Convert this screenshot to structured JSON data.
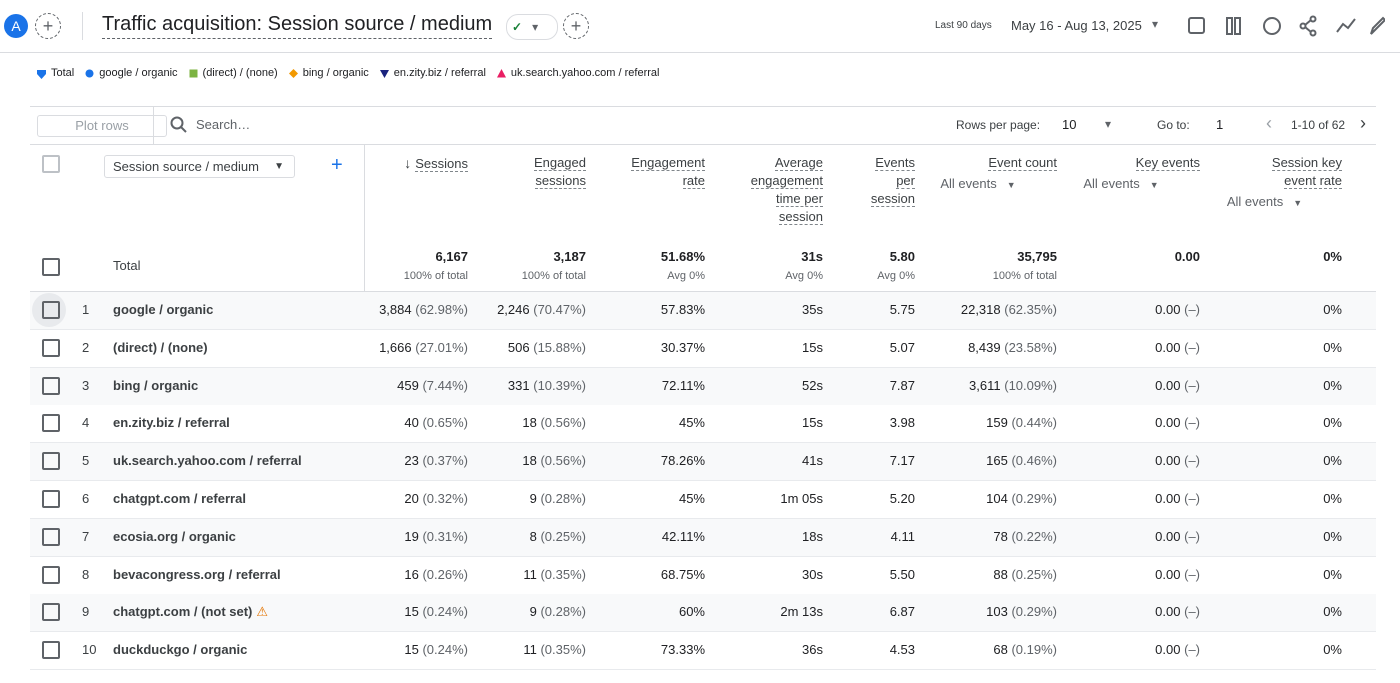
{
  "header": {
    "avatar": "A",
    "title": "Traffic acquisition: Session source / medium",
    "date_label": "Last 90 days",
    "date_range": "May 16 - Aug 13, 2025"
  },
  "legend": [
    {
      "label": "Total",
      "color": "#1a73e8",
      "shape": "pin"
    },
    {
      "label": "google / organic",
      "color": "#1a73e8",
      "shape": "circle"
    },
    {
      "label": "(direct) / (none)",
      "color": "#7cb342",
      "shape": "square"
    },
    {
      "label": "bing / organic",
      "color": "#f29900",
      "shape": "diamond"
    },
    {
      "label": "en.zity.biz / referral",
      "color": "#1a237e",
      "shape": "triangle-down"
    },
    {
      "label": "uk.search.yahoo.com / referral",
      "color": "#e91e63",
      "shape": "triangle-up"
    }
  ],
  "toolbar": {
    "plot_rows": "Plot rows",
    "search": "Search…",
    "rows_per_page_label": "Rows per page:",
    "rows_per_page": "10",
    "goto_label": "Go to:",
    "goto": "1",
    "pagination": "1-10 of 62"
  },
  "table": {
    "dimension": "Session source / medium",
    "columns": [
      {
        "label": "Sessions"
      },
      {
        "label": "Engaged sessions"
      },
      {
        "label": "Engagement rate"
      },
      {
        "label": "Average engagement time per session"
      },
      {
        "label": "Events per session"
      },
      {
        "label": "Event count",
        "sub": "All events"
      },
      {
        "label": "Key events",
        "sub": "All events"
      },
      {
        "label": "Session key event rate",
        "sub": "All events"
      }
    ],
    "total": {
      "label": "Total",
      "cells": [
        {
          "value": "6,167",
          "sub": "100% of total"
        },
        {
          "value": "3,187",
          "sub": "100% of total"
        },
        {
          "value": "51.68%",
          "sub": "Avg 0%"
        },
        {
          "value": "31s",
          "sub": "Avg 0%"
        },
        {
          "value": "5.80",
          "sub": "Avg 0%"
        },
        {
          "value": "35,795",
          "sub": "100% of total"
        },
        {
          "value": "0.00"
        },
        {
          "value": "0%"
        }
      ]
    },
    "rows": [
      {
        "index": "1",
        "name": "google / organic",
        "cells": [
          {
            "value": "3,884",
            "share": "(62.98%)"
          },
          {
            "value": "2,246",
            "share": "(70.47%)"
          },
          {
            "value": "57.83%"
          },
          {
            "value": "35s"
          },
          {
            "value": "5.75"
          },
          {
            "value": "22,318",
            "share": "(62.35%)"
          },
          {
            "value": "0.00",
            "share": "(–)"
          },
          {
            "value": "0%"
          }
        ]
      },
      {
        "index": "2",
        "name": "(direct) / (none)",
        "cells": [
          {
            "value": "1,666",
            "share": "(27.01%)"
          },
          {
            "value": "506",
            "share": "(15.88%)"
          },
          {
            "value": "30.37%"
          },
          {
            "value": "15s"
          },
          {
            "value": "5.07"
          },
          {
            "value": "8,439",
            "share": "(23.58%)"
          },
          {
            "value": "0.00",
            "share": "(–)"
          },
          {
            "value": "0%"
          }
        ]
      },
      {
        "index": "3",
        "name": "bing / organic",
        "cells": [
          {
            "value": "459",
            "share": "(7.44%)"
          },
          {
            "value": "331",
            "share": "(10.39%)"
          },
          {
            "value": "72.11%"
          },
          {
            "value": "52s"
          },
          {
            "value": "7.87"
          },
          {
            "value": "3,611",
            "share": "(10.09%)"
          },
          {
            "value": "0.00",
            "share": "(–)"
          },
          {
            "value": "0%"
          }
        ]
      },
      {
        "index": "4",
        "name": "en.zity.biz / referral",
        "cells": [
          {
            "value": "40",
            "share": "(0.65%)"
          },
          {
            "value": "18",
            "share": "(0.56%)"
          },
          {
            "value": "45%"
          },
          {
            "value": "15s"
          },
          {
            "value": "3.98"
          },
          {
            "value": "159",
            "share": "(0.44%)"
          },
          {
            "value": "0.00",
            "share": "(–)"
          },
          {
            "value": "0%"
          }
        ]
      },
      {
        "index": "5",
        "name": "uk.search.yahoo.com / referral",
        "cells": [
          {
            "value": "23",
            "share": "(0.37%)"
          },
          {
            "value": "18",
            "share": "(0.56%)"
          },
          {
            "value": "78.26%"
          },
          {
            "value": "41s"
          },
          {
            "value": "7.17"
          },
          {
            "value": "165",
            "share": "(0.46%)"
          },
          {
            "value": "0.00",
            "share": "(–)"
          },
          {
            "value": "0%"
          }
        ]
      },
      {
        "index": "6",
        "name": "chatgpt.com / referral",
        "cells": [
          {
            "value": "20",
            "share": "(0.32%)"
          },
          {
            "value": "9",
            "share": "(0.28%)"
          },
          {
            "value": "45%"
          },
          {
            "value": "1m 05s"
          },
          {
            "value": "5.20"
          },
          {
            "value": "104",
            "share": "(0.29%)"
          },
          {
            "value": "0.00",
            "share": "(–)"
          },
          {
            "value": "0%"
          }
        ]
      },
      {
        "index": "7",
        "name": "ecosia.org / organic",
        "cells": [
          {
            "value": "19",
            "share": "(0.31%)"
          },
          {
            "value": "8",
            "share": "(0.25%)"
          },
          {
            "value": "42.11%"
          },
          {
            "value": "18s"
          },
          {
            "value": "4.11"
          },
          {
            "value": "78",
            "share": "(0.22%)"
          },
          {
            "value": "0.00",
            "share": "(–)"
          },
          {
            "value": "0%"
          }
        ]
      },
      {
        "index": "8",
        "name": "bevacongress.org / referral",
        "cells": [
          {
            "value": "16",
            "share": "(0.26%)"
          },
          {
            "value": "11",
            "share": "(0.35%)"
          },
          {
            "value": "68.75%"
          },
          {
            "value": "30s"
          },
          {
            "value": "5.50"
          },
          {
            "value": "88",
            "share": "(0.25%)"
          },
          {
            "value": "0.00",
            "share": "(–)"
          },
          {
            "value": "0%"
          }
        ]
      },
      {
        "index": "9",
        "name": "chatgpt.com / (not set)",
        "warning": true,
        "cells": [
          {
            "value": "15",
            "share": "(0.24%)"
          },
          {
            "value": "9",
            "share": "(0.28%)"
          },
          {
            "value": "60%"
          },
          {
            "value": "2m 13s"
          },
          {
            "value": "6.87"
          },
          {
            "value": "103",
            "share": "(0.29%)"
          },
          {
            "value": "0.00",
            "share": "(–)"
          },
          {
            "value": "0%"
          }
        ]
      },
      {
        "index": "10",
        "name": "duckduckgo / organic",
        "cells": [
          {
            "value": "15",
            "share": "(0.24%)"
          },
          {
            "value": "11",
            "share": "(0.35%)"
          },
          {
            "value": "73.33%"
          },
          {
            "value": "36s"
          },
          {
            "value": "4.53"
          },
          {
            "value": "68",
            "share": "(0.19%)"
          },
          {
            "value": "0.00",
            "share": "(–)"
          },
          {
            "value": "0%"
          }
        ]
      }
    ]
  }
}
